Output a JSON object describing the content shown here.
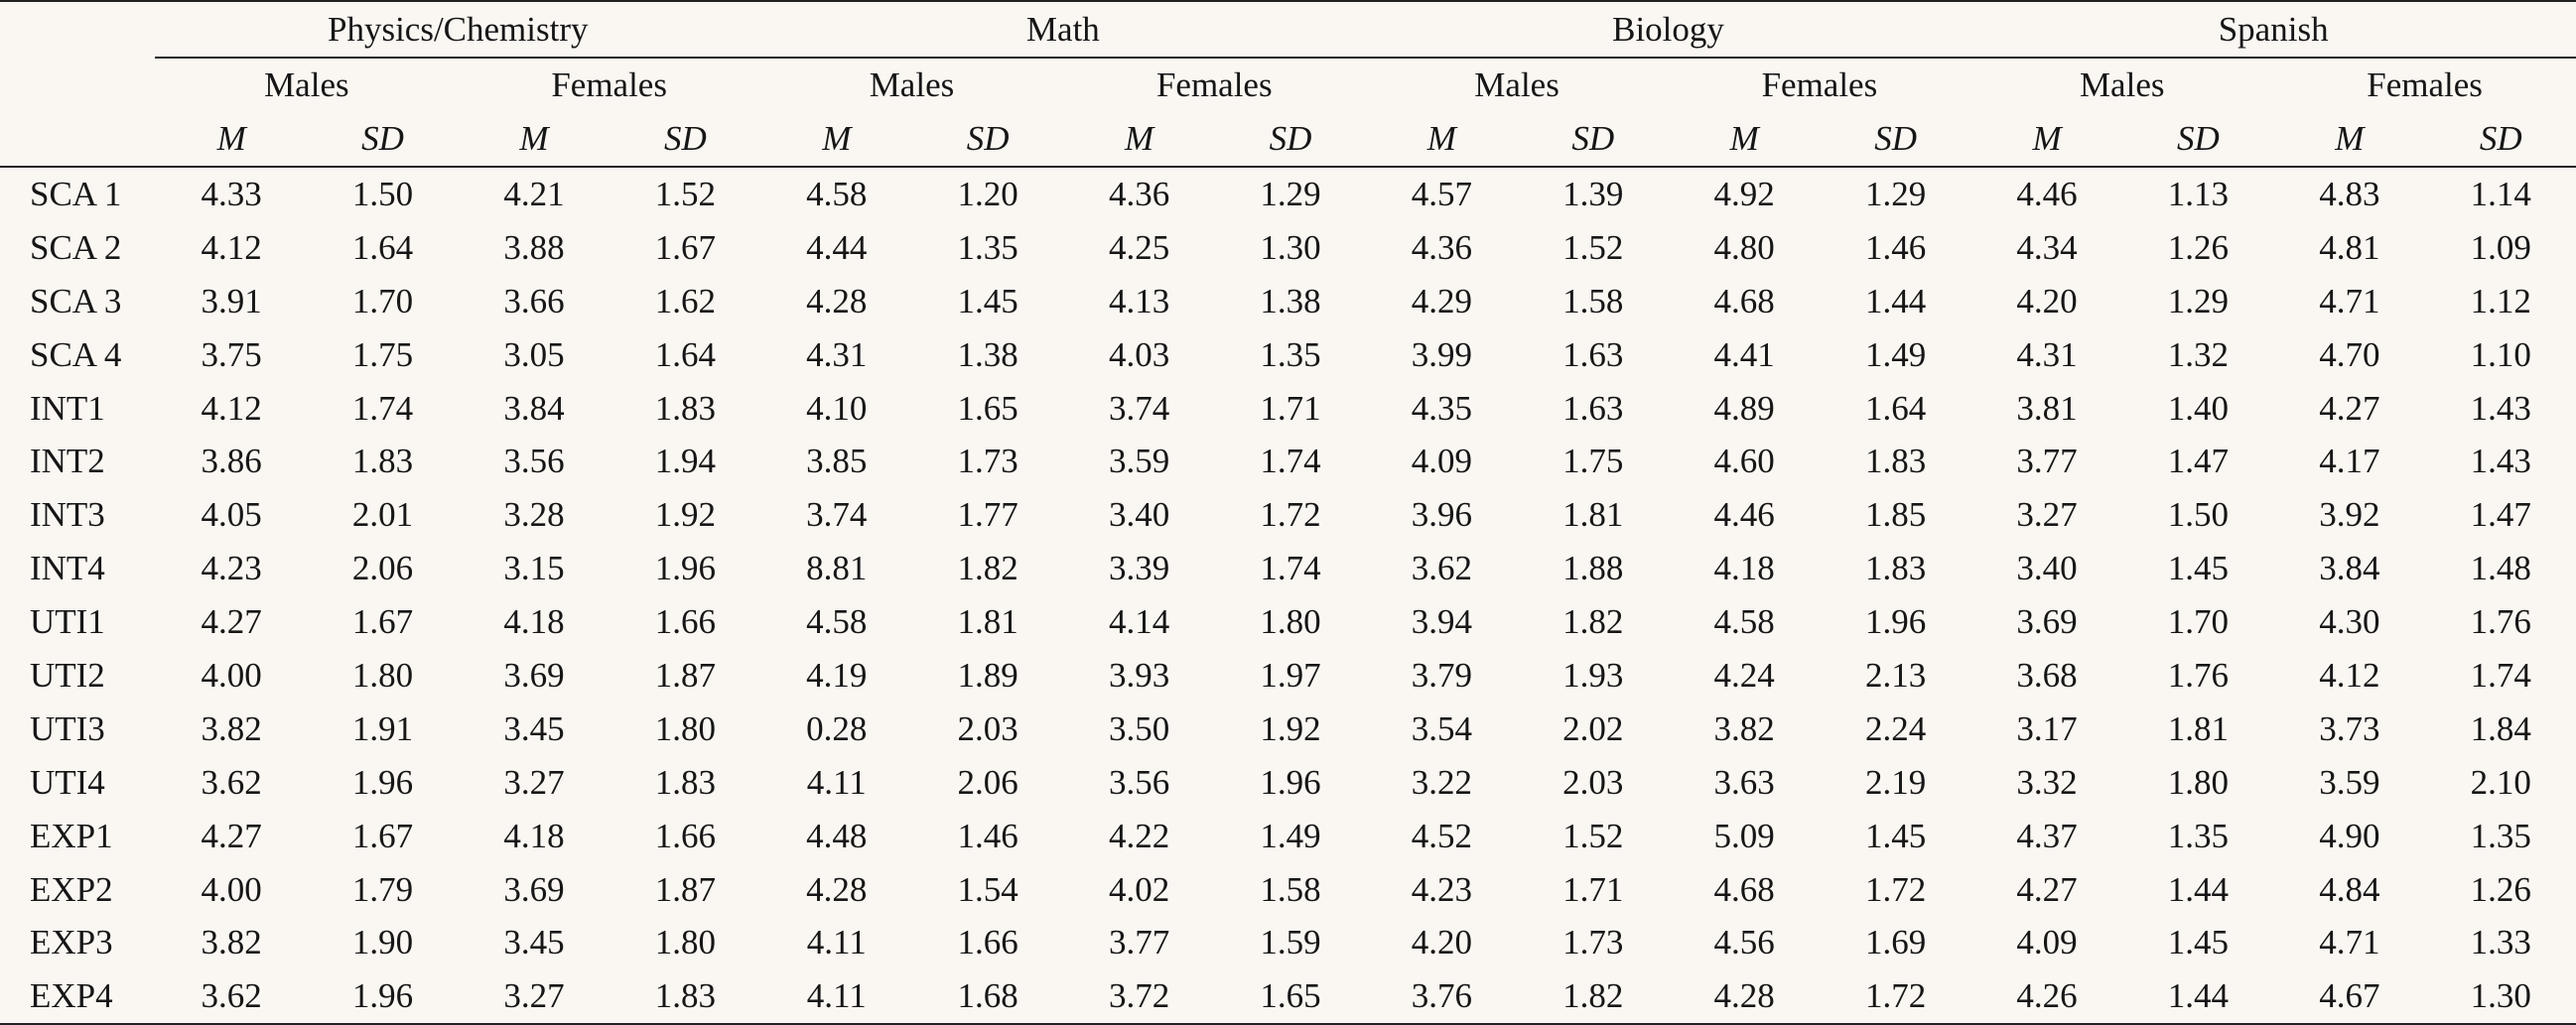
{
  "table": {
    "subjects": [
      "Physics/Chemistry",
      "Math",
      "Biology",
      "Spanish"
    ],
    "sexes": [
      "Males",
      "Females"
    ],
    "stats": [
      "M",
      "SD"
    ],
    "rows": [
      {
        "label": "SCA 1",
        "values": [
          "4.33",
          "1.50",
          "4.21",
          "1.52",
          "4.58",
          "1.20",
          "4.36",
          "1.29",
          "4.57",
          "1.39",
          "4.92",
          "1.29",
          "4.46",
          "1.13",
          "4.83",
          "1.14"
        ]
      },
      {
        "label": "SCA 2",
        "values": [
          "4.12",
          "1.64",
          "3.88",
          "1.67",
          "4.44",
          "1.35",
          "4.25",
          "1.30",
          "4.36",
          "1.52",
          "4.80",
          "1.46",
          "4.34",
          "1.26",
          "4.81",
          "1.09"
        ]
      },
      {
        "label": "SCA 3",
        "values": [
          "3.91",
          "1.70",
          "3.66",
          "1.62",
          "4.28",
          "1.45",
          "4.13",
          "1.38",
          "4.29",
          "1.58",
          "4.68",
          "1.44",
          "4.20",
          "1.29",
          "4.71",
          "1.12"
        ]
      },
      {
        "label": "SCA 4",
        "values": [
          "3.75",
          "1.75",
          "3.05",
          "1.64",
          "4.31",
          "1.38",
          "4.03",
          "1.35",
          "3.99",
          "1.63",
          "4.41",
          "1.49",
          "4.31",
          "1.32",
          "4.70",
          "1.10"
        ]
      },
      {
        "label": "INT1",
        "values": [
          "4.12",
          "1.74",
          "3.84",
          "1.83",
          "4.10",
          "1.65",
          "3.74",
          "1.71",
          "4.35",
          "1.63",
          "4.89",
          "1.64",
          "3.81",
          "1.40",
          "4.27",
          "1.43"
        ]
      },
      {
        "label": "INT2",
        "values": [
          "3.86",
          "1.83",
          "3.56",
          "1.94",
          "3.85",
          "1.73",
          "3.59",
          "1.74",
          "4.09",
          "1.75",
          "4.60",
          "1.83",
          "3.77",
          "1.47",
          "4.17",
          "1.43"
        ]
      },
      {
        "label": "INT3",
        "values": [
          "4.05",
          "2.01",
          "3.28",
          "1.92",
          "3.74",
          "1.77",
          "3.40",
          "1.72",
          "3.96",
          "1.81",
          "4.46",
          "1.85",
          "3.27",
          "1.50",
          "3.92",
          "1.47"
        ]
      },
      {
        "label": "INT4",
        "values": [
          "4.23",
          "2.06",
          "3.15",
          "1.96",
          "8.81",
          "1.82",
          "3.39",
          "1.74",
          "3.62",
          "1.88",
          "4.18",
          "1.83",
          "3.40",
          "1.45",
          "3.84",
          "1.48"
        ]
      },
      {
        "label": "UTI1",
        "values": [
          "4.27",
          "1.67",
          "4.18",
          "1.66",
          "4.58",
          "1.81",
          "4.14",
          "1.80",
          "3.94",
          "1.82",
          "4.58",
          "1.96",
          "3.69",
          "1.70",
          "4.30",
          "1.76"
        ]
      },
      {
        "label": "UTI2",
        "values": [
          "4.00",
          "1.80",
          "3.69",
          "1.87",
          "4.19",
          "1.89",
          "3.93",
          "1.97",
          "3.79",
          "1.93",
          "4.24",
          "2.13",
          "3.68",
          "1.76",
          "4.12",
          "1.74"
        ]
      },
      {
        "label": "UTI3",
        "values": [
          "3.82",
          "1.91",
          "3.45",
          "1.80",
          "0.28",
          "2.03",
          "3.50",
          "1.92",
          "3.54",
          "2.02",
          "3.82",
          "2.24",
          "3.17",
          "1.81",
          "3.73",
          "1.84"
        ]
      },
      {
        "label": "UTI4",
        "values": [
          "3.62",
          "1.96",
          "3.27",
          "1.83",
          "4.11",
          "2.06",
          "3.56",
          "1.96",
          "3.22",
          "2.03",
          "3.63",
          "2.19",
          "3.32",
          "1.80",
          "3.59",
          "2.10"
        ]
      },
      {
        "label": "EXP1",
        "values": [
          "4.27",
          "1.67",
          "4.18",
          "1.66",
          "4.48",
          "1.46",
          "4.22",
          "1.49",
          "4.52",
          "1.52",
          "5.09",
          "1.45",
          "4.37",
          "1.35",
          "4.90",
          "1.35"
        ]
      },
      {
        "label": "EXP2",
        "values": [
          "4.00",
          "1.79",
          "3.69",
          "1.87",
          "4.28",
          "1.54",
          "4.02",
          "1.58",
          "4.23",
          "1.71",
          "4.68",
          "1.72",
          "4.27",
          "1.44",
          "4.84",
          "1.26"
        ]
      },
      {
        "label": "EXP3",
        "values": [
          "3.82",
          "1.90",
          "3.45",
          "1.80",
          "4.11",
          "1.66",
          "3.77",
          "1.59",
          "4.20",
          "1.73",
          "4.56",
          "1.69",
          "4.09",
          "1.45",
          "4.71",
          "1.33"
        ]
      },
      {
        "label": "EXP4",
        "values": [
          "3.62",
          "1.96",
          "3.27",
          "1.83",
          "4.11",
          "1.68",
          "3.72",
          "1.65",
          "3.76",
          "1.82",
          "4.28",
          "1.72",
          "4.26",
          "1.44",
          "4.67",
          "1.30"
        ]
      }
    ]
  }
}
